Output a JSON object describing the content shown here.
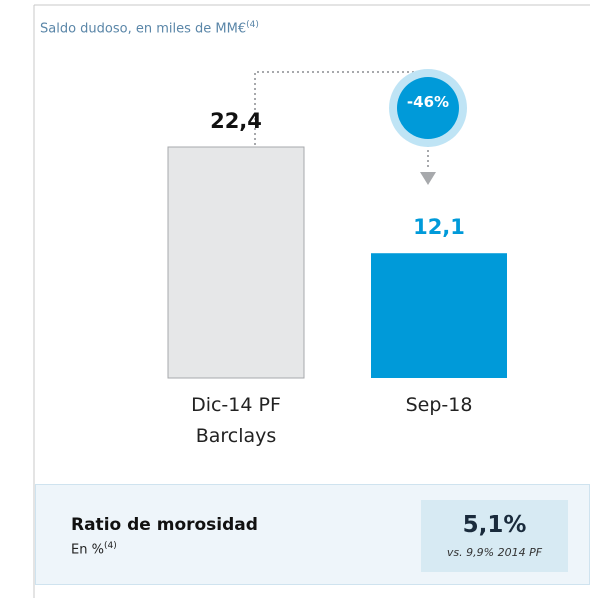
{
  "chart_data": {
    "type": "bar",
    "subtitle": "Saldo dudoso, en miles de MM€",
    "subtitle_note": "(4)",
    "categories": [
      "Dic-14 PF Barclays",
      "Sep-18"
    ],
    "values": [
      22.4,
      12.1
    ],
    "value_labels": [
      "22,4",
      "12,1"
    ],
    "colors": [
      "#e6e7e8",
      "#009ad9"
    ],
    "label_colors": [
      "#111111",
      "#009ad9"
    ],
    "annotation": "-46%"
  },
  "ratio_box": {
    "title": "Ratio de morosidad",
    "subtitle": "En %",
    "note": "(4)",
    "value": "5,1%",
    "comparison": "vs. 9,9% 2014 PF"
  }
}
